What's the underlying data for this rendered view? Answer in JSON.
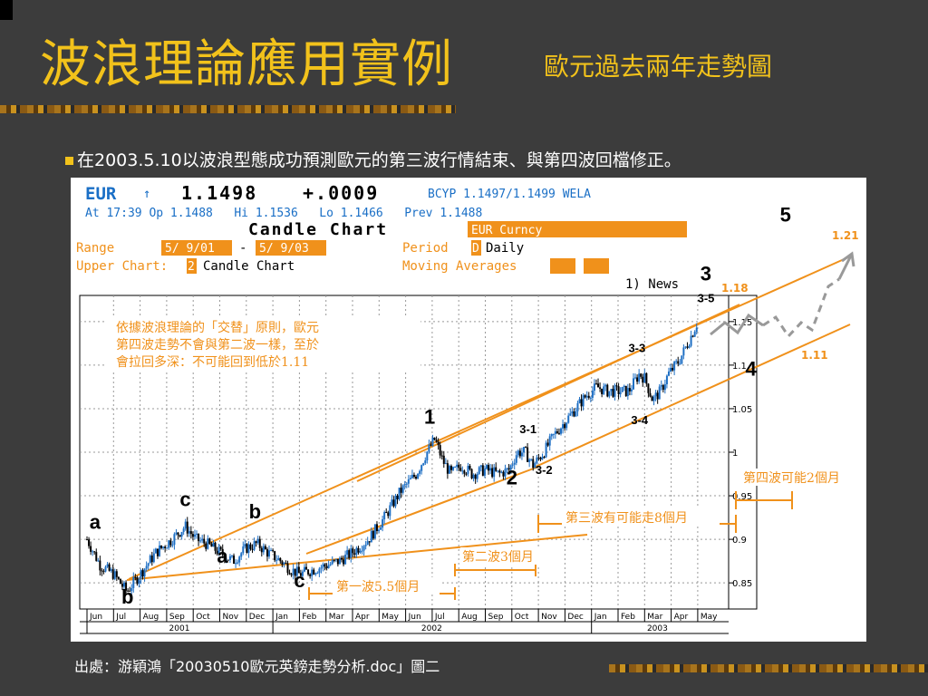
{
  "slide": {
    "title": "波浪理論應用實例",
    "subtitle": "歐元過去兩年走勢圖",
    "bullet": "在2003.5.10以波浪型態成功預測歐元的第三波行情結束、與第四波回檔修正。",
    "source": "出處：游穎鴻「20030510歐元英鎊走勢分析.doc」圖二"
  },
  "terminal": {
    "symbol": "EUR",
    "arrow": "↑",
    "price": "1.1498",
    "change": "+.0009",
    "bcyp": "BCYP 1.1497/1.1499 WELA",
    "line2": "At 17:39 Op 1.1488   Hi 1.1536   Lo 1.1466   Prev 1.1488",
    "chart_title": "Candle Chart",
    "curncy": "EUR Curncy",
    "range_label": "Range",
    "range_from": "5/ 9/01",
    "range_dash": "-",
    "range_to": "5/ 9/03",
    "period_label": "Period",
    "period_code": "D",
    "period_value": "Daily",
    "upper_label": "Upper Chart:",
    "upper_code": "2",
    "upper_value": "Candle Chart",
    "ma_label": "Moving Averages",
    "news": "1) News"
  },
  "annotations": {
    "note": [
      "依據波浪理論的「交替」原則，歐元",
      "第四波走勢不會與第二波一樣，至於",
      "會拉回多深：不可能回到低於1.11"
    ],
    "wave1_dur": "第一波5.5個月",
    "wave2_dur": "第二波3個月",
    "wave3_dur": "第三波有可能走8個月",
    "wave4_dur": "第四波可能2個月",
    "wave5_target": "1.21",
    "wave3_top": "1.18",
    "wave4_target": "1.11"
  },
  "colors": {
    "title": "#f2c21b",
    "orange": "#f0911b",
    "candle": "#000000",
    "candle_up": "#1e6fc4",
    "terminal_blue": "#1a6fc6",
    "terminal_orange": "#f0911b",
    "projection": "#999999"
  },
  "chart_data": {
    "type": "line",
    "subtype": "candlestick",
    "ylim": [
      0.82,
      1.18
    ],
    "yticks": [
      "1.15",
      "1.1",
      "1.05",
      "1",
      "0.95",
      "0.9",
      "0.85"
    ],
    "months": [
      "Jun",
      "Jul",
      "Aug",
      "Sep",
      "Oct",
      "Nov",
      "Dec",
      "Jan",
      "Feb",
      "Mar",
      "Apr",
      "May",
      "Jun",
      "Jul",
      "Aug",
      "Sep",
      "Oct",
      "Nov",
      "Dec",
      "Jan",
      "Feb",
      "Mar",
      "Apr",
      "May"
    ],
    "years": [
      "2001",
      "2002",
      "2003"
    ],
    "price_path": [
      [
        0.0,
        0.9
      ],
      [
        0.5,
        0.87
      ],
      [
        1.0,
        0.86
      ],
      [
        1.5,
        0.84
      ],
      [
        2.0,
        0.86
      ],
      [
        2.6,
        0.885
      ],
      [
        3.2,
        0.9
      ],
      [
        3.7,
        0.915
      ],
      [
        4.1,
        0.9
      ],
      [
        4.5,
        0.895
      ],
      [
        5.0,
        0.885
      ],
      [
        5.5,
        0.875
      ],
      [
        6.0,
        0.89
      ],
      [
        6.4,
        0.895
      ],
      [
        6.8,
        0.885
      ],
      [
        7.3,
        0.875
      ],
      [
        7.7,
        0.865
      ],
      [
        8.0,
        0.86
      ],
      [
        8.5,
        0.865
      ],
      [
        9.0,
        0.87
      ],
      [
        9.5,
        0.875
      ],
      [
        10.0,
        0.885
      ],
      [
        10.6,
        0.9
      ],
      [
        11.2,
        0.925
      ],
      [
        11.8,
        0.955
      ],
      [
        12.4,
        0.975
      ],
      [
        12.8,
        1.0
      ],
      [
        13.1,
        1.015
      ],
      [
        13.4,
        0.99
      ],
      [
        13.7,
        0.975
      ],
      [
        14.1,
        0.985
      ],
      [
        14.5,
        0.975
      ],
      [
        15.0,
        0.98
      ],
      [
        15.5,
        0.975
      ],
      [
        15.9,
        0.98
      ],
      [
        16.2,
        1.0
      ],
      [
        16.5,
        1.0
      ],
      [
        16.8,
        0.985
      ],
      [
        17.2,
        1.0
      ],
      [
        17.6,
        1.02
      ],
      [
        18.0,
        1.035
      ],
      [
        18.4,
        1.05
      ],
      [
        18.8,
        1.065
      ],
      [
        19.2,
        1.075
      ],
      [
        19.6,
        1.07
      ],
      [
        20.0,
        1.07
      ],
      [
        20.4,
        1.07
      ],
      [
        20.8,
        1.09
      ],
      [
        21.0,
        1.085
      ],
      [
        21.3,
        1.06
      ],
      [
        21.6,
        1.07
      ],
      [
        21.9,
        1.09
      ],
      [
        22.3,
        1.105
      ],
      [
        22.7,
        1.13
      ],
      [
        23.0,
        1.15
      ]
    ],
    "wave_labels": [
      {
        "text": "a",
        "x": 0.3,
        "y": 0.912
      },
      {
        "text": "b",
        "x": 1.5,
        "y": 0.826
      },
      {
        "text": "c",
        "x": 3.7,
        "y": 0.938
      },
      {
        "text": "a",
        "x": 5.1,
        "y": 0.873
      },
      {
        "text": "b",
        "x": 6.3,
        "y": 0.924
      },
      {
        "text": "c",
        "x": 8.0,
        "y": 0.845
      },
      {
        "text": "1",
        "x": 12.9,
        "y": 1.033
      },
      {
        "text": "2",
        "x": 16.0,
        "y": 0.963
      },
      {
        "text": "3-1",
        "x": 16.7,
        "y": 1.022
      },
      {
        "text": "3-2",
        "x": 17.3,
        "y": 0.975
      },
      {
        "text": "3-3",
        "x": 20.8,
        "y": 1.115
      },
      {
        "text": "3-4",
        "x": 20.9,
        "y": 1.032
      },
      {
        "text": "3-5",
        "x": 23.4,
        "y": 1.172
      },
      {
        "text": "3",
        "x": 23.3,
        "y": 1.197
      },
      {
        "text": "4",
        "x": 25.0,
        "y": 1.088
      },
      {
        "text": "5",
        "x": 26.3,
        "y": 1.265
      }
    ]
  }
}
